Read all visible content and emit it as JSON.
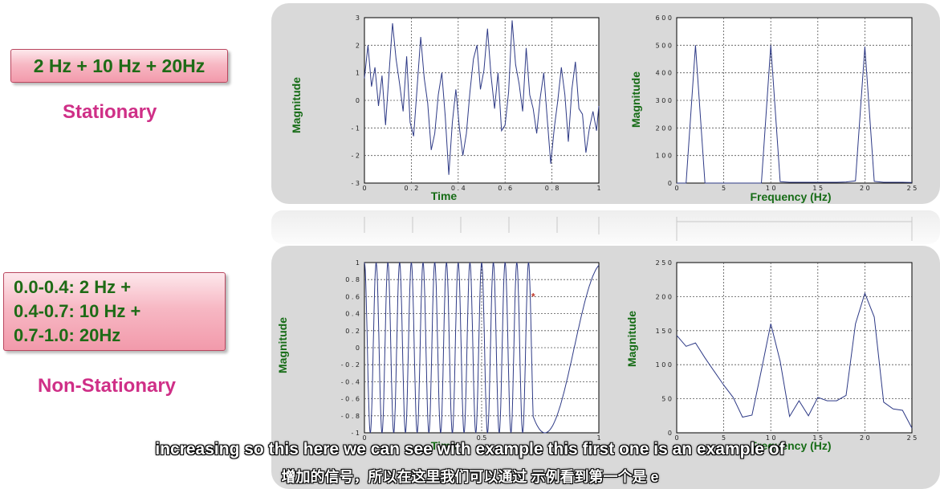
{
  "left": {
    "signal1": {
      "formula": "2 Hz + 10 Hz + 20Hz",
      "type": "Stationary"
    },
    "signal2": {
      "lines": [
        "0.0-0.4:  2 Hz +",
        "0.4-0.7: 10 Hz +",
        "0.7-1.0: 20Hz"
      ],
      "type": "Non-Stationary"
    }
  },
  "subtitles": {
    "english": "increasing so this here we can see with example this first one is an example of",
    "chinese": "增加的信号，所以在这里我们可以通过 示例看到第一个是 e"
  },
  "colors": {
    "plot_line": "#2e3a86",
    "axis_label": "#166c16",
    "title_pink": "#cf2f87",
    "panel_bg": "#d9d9d9"
  },
  "chart_data": [
    {
      "type": "line",
      "xlabel": "Time",
      "ylabel": "Magnitude",
      "xlim": [
        0,
        1
      ],
      "ylim": [
        -3,
        3
      ],
      "xticks": [
        0,
        0.2,
        0.4,
        0.6,
        0.8,
        1
      ],
      "xtick_labels": [
        "0",
        "0 . 2",
        "0 . 4",
        "0 . 6",
        "0 . 8",
        "1"
      ],
      "yticks": [
        -3,
        -2,
        -1,
        0,
        1,
        2,
        3
      ],
      "ytick_labels": [
        "- 3",
        "- 2",
        "- 1",
        "0",
        "1",
        "2",
        "3"
      ],
      "grid": true,
      "x": [
        0,
        0.015,
        0.03,
        0.045,
        0.06,
        0.075,
        0.09,
        0.105,
        0.12,
        0.135,
        0.15,
        0.165,
        0.18,
        0.195,
        0.21,
        0.225,
        0.24,
        0.255,
        0.27,
        0.285,
        0.3,
        0.315,
        0.33,
        0.345,
        0.36,
        0.375,
        0.39,
        0.405,
        0.42,
        0.435,
        0.45,
        0.465,
        0.48,
        0.495,
        0.51,
        0.525,
        0.54,
        0.555,
        0.57,
        0.585,
        0.6,
        0.615,
        0.63,
        0.645,
        0.66,
        0.675,
        0.69,
        0.705,
        0.72,
        0.735,
        0.75,
        0.765,
        0.78,
        0.795,
        0.81,
        0.825,
        0.84,
        0.855,
        0.87,
        0.885,
        0.9,
        0.915,
        0.93,
        0.945,
        0.96,
        0.975,
        0.99,
        1.0
      ],
      "values": [
        0.8,
        2.0,
        0.5,
        1.2,
        -0.2,
        0.9,
        -0.9,
        1.0,
        2.8,
        1.5,
        0.6,
        -0.4,
        1.6,
        -0.8,
        -1.3,
        0.5,
        2.3,
        0.8,
        -0.1,
        -1.8,
        -1.2,
        0.2,
        1.0,
        -0.6,
        -2.7,
        -0.8,
        0.4,
        -1.0,
        -2.0,
        -1.2,
        0.3,
        1.5,
        2.0,
        0.4,
        1.1,
        2.6,
        0.9,
        -0.3,
        1.0,
        -1.1,
        -0.9,
        0.3,
        2.9,
        1.3,
        0.6,
        -0.4,
        1.9,
        0.2,
        -0.3,
        -1.2,
        0.1,
        1.0,
        -0.7,
        -2.3,
        -1.0,
        0.0,
        1.2,
        0.2,
        -1.5,
        0.4,
        1.4,
        -0.3,
        -0.5,
        -1.9,
        -1.0,
        -0.4,
        -1.1,
        -0.2
      ]
    },
    {
      "type": "line",
      "xlabel": "Frequency (Hz)",
      "ylabel": "Magnitude",
      "xlim": [
        0,
        25
      ],
      "ylim": [
        0,
        600
      ],
      "xticks": [
        0,
        5,
        10,
        15,
        20,
        25
      ],
      "xtick_labels": [
        "0",
        "5",
        "1 0",
        "1 5",
        "2 0",
        "2 5"
      ],
      "yticks": [
        0,
        100,
        200,
        300,
        400,
        500,
        600
      ],
      "ytick_labels": [
        "0",
        "1 0 0",
        "2 0 0",
        "3 0 0",
        "4 0 0",
        "5 0 0",
        "6 0 0"
      ],
      "grid": true,
      "x": [
        0,
        1,
        2,
        3,
        4,
        5,
        6,
        7,
        8,
        9,
        10,
        11,
        12,
        13,
        14,
        15,
        16,
        17,
        18,
        19,
        20,
        21,
        22,
        23,
        24,
        25
      ],
      "values": [
        0,
        0,
        500,
        0,
        0,
        0,
        0,
        0,
        0,
        0,
        500,
        5,
        3,
        3,
        3,
        3,
        3,
        3,
        4,
        8,
        495,
        6,
        3,
        3,
        3,
        2
      ]
    },
    {
      "type": "line",
      "xlabel": "Time",
      "ylabel": "Magnitude",
      "xlim": [
        0,
        1
      ],
      "ylim": [
        -1,
        1
      ],
      "xticks": [
        0,
        0.5,
        1
      ],
      "xtick_labels": [
        "0",
        "0.5",
        "1"
      ],
      "yticks": [
        -1,
        -0.8,
        -0.6,
        -0.4,
        -0.2,
        0,
        0.2,
        0.4,
        0.6,
        0.8,
        1
      ],
      "ytick_labels": [
        "- 1",
        "- 0 . 8",
        "- 0 . 6",
        "- 0 . 4",
        "- 0 . 2",
        "0",
        "0 . 2",
        "0 . 4",
        "0 . 6",
        "0 . 8",
        "1"
      ],
      "grid": true,
      "segments": [
        {
          "from": 0.0,
          "to": 0.72,
          "frequency_hz": 20
        },
        {
          "from": 0.72,
          "to": 1.0,
          "frequency_hz": 2
        }
      ],
      "marker": {
        "x": 0.72,
        "y": 0.6,
        "symbol": "*"
      }
    },
    {
      "type": "line",
      "xlabel": "Frequency (Hz)",
      "ylabel": "Magnitude",
      "xlim": [
        0,
        25
      ],
      "ylim": [
        0,
        250
      ],
      "xticks": [
        0,
        5,
        10,
        15,
        20,
        25
      ],
      "xtick_labels": [
        "0",
        "5",
        "1 0",
        "1 5",
        "2 0",
        "2 5"
      ],
      "yticks": [
        0,
        50,
        100,
        150,
        200,
        250
      ],
      "ytick_labels": [
        "0",
        "5 0",
        "1 0 0",
        "1 5 0",
        "2 0 0",
        "2 5 0"
      ],
      "grid": true,
      "x": [
        0,
        1,
        2,
        3,
        4,
        5,
        6,
        7,
        8,
        9,
        10,
        11,
        12,
        13,
        14,
        15,
        16,
        17,
        18,
        19,
        20,
        21,
        22,
        23,
        24,
        25
      ],
      "values": [
        143,
        127,
        132,
        110,
        90,
        70,
        52,
        23,
        26,
        92,
        160,
        105,
        24,
        47,
        25,
        52,
        47,
        47,
        55,
        160,
        205,
        170,
        45,
        35,
        33,
        7
      ]
    }
  ]
}
